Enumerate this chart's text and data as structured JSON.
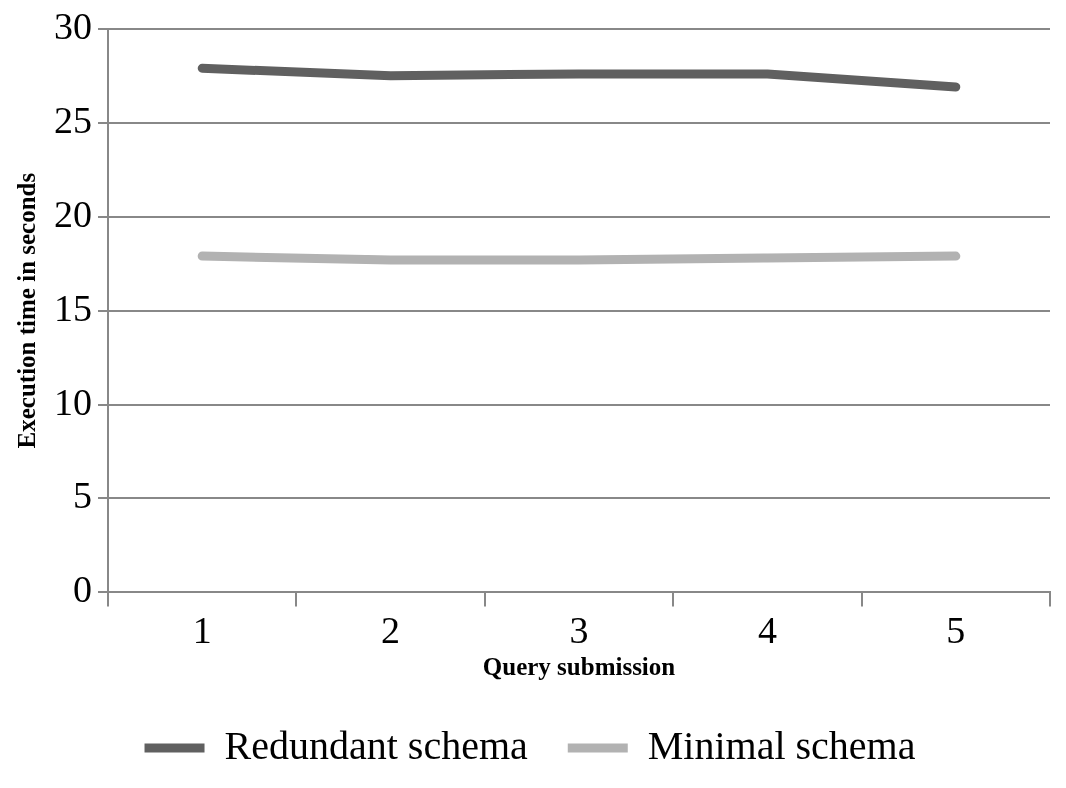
{
  "chart_data": {
    "type": "line",
    "xlabel": "Query submission",
    "ylabel": "Execution time in seconds",
    "categories": [
      "1",
      "2",
      "3",
      "4",
      "5"
    ],
    "series": [
      {
        "name": "Redundant schema",
        "color": "#606060",
        "values": [
          27.9,
          27.5,
          27.6,
          27.6,
          26.9
        ]
      },
      {
        "name": "Minimal schema",
        "color": "#b2b2b2",
        "values": [
          17.9,
          17.7,
          17.7,
          17.8,
          17.9
        ]
      }
    ],
    "ylim": [
      0,
      30
    ],
    "yticks": [
      0,
      5,
      10,
      15,
      20,
      25,
      30
    ],
    "grid": "y",
    "legend": "bottom",
    "marker": "none",
    "line_style": "solid"
  }
}
